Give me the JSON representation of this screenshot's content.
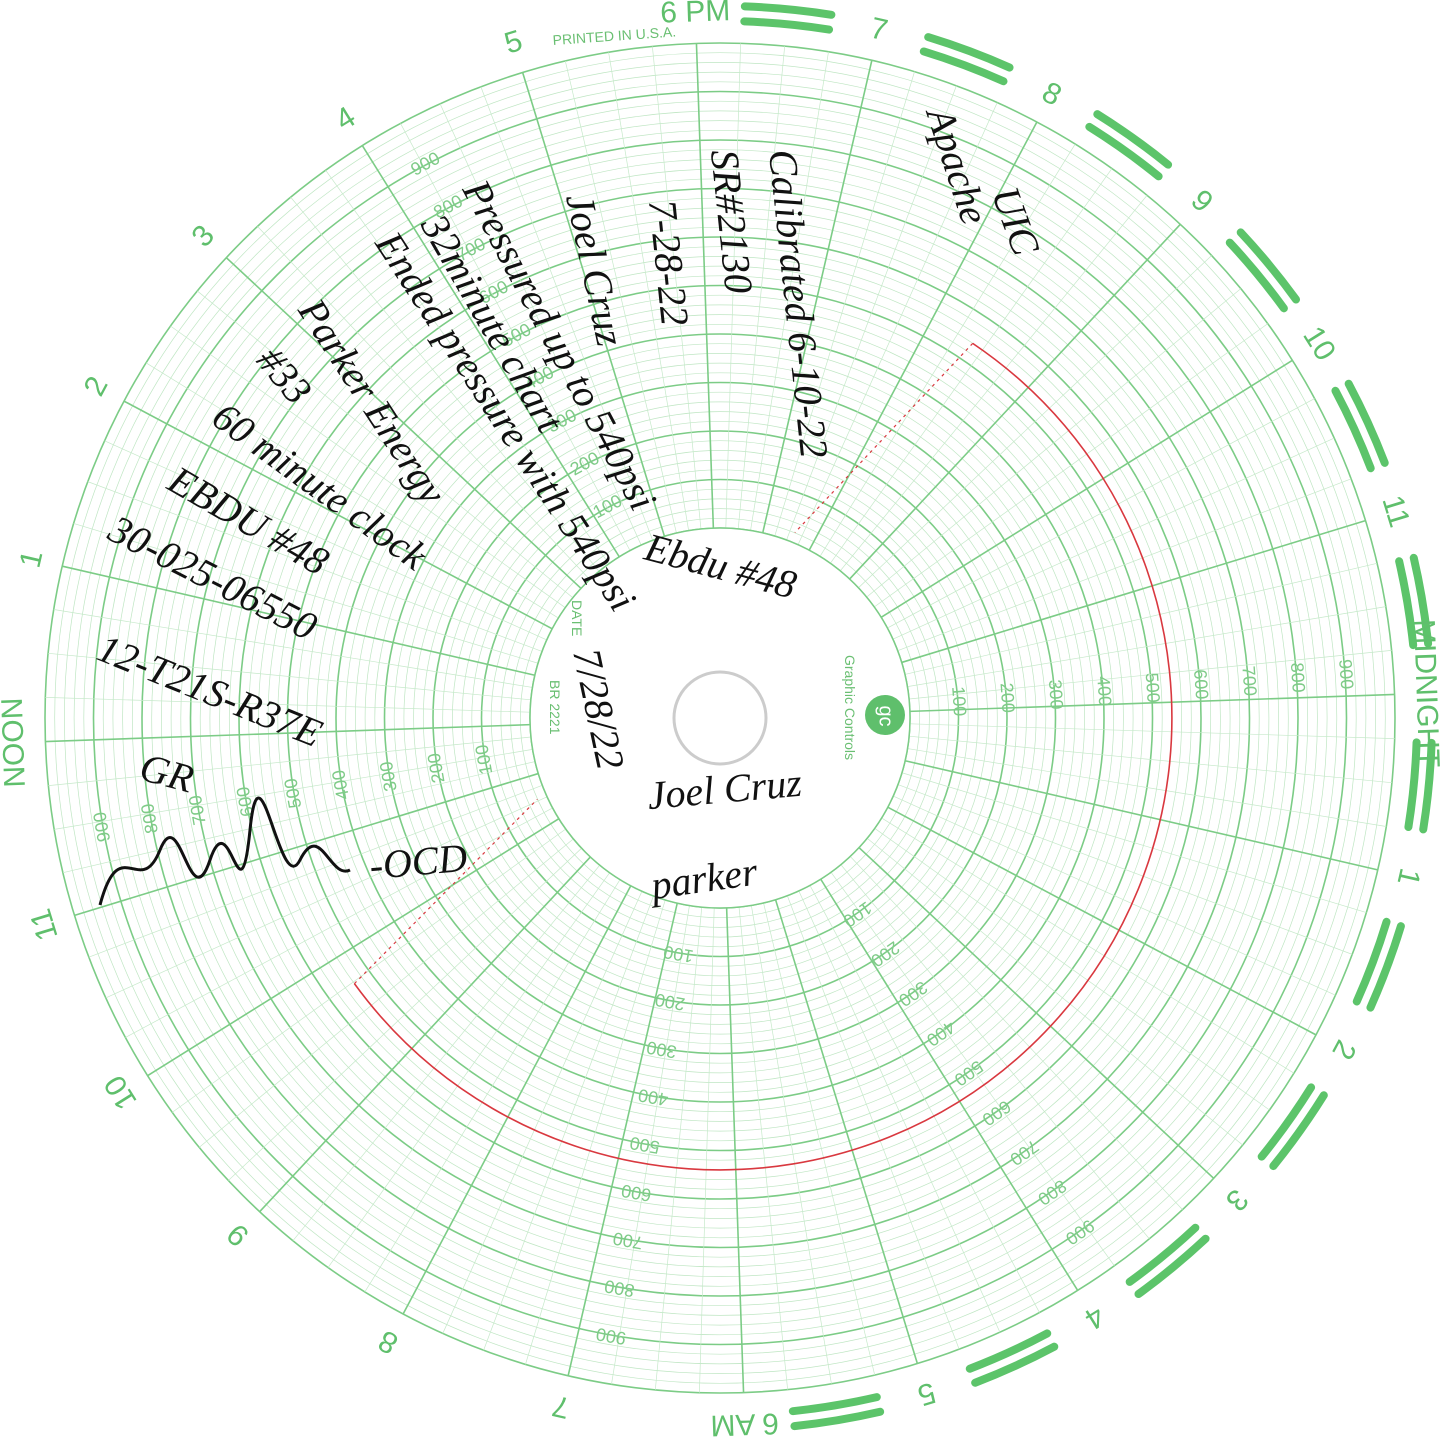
{
  "printed": {
    "hours": [
      "6 PM",
      "7",
      "8",
      "9",
      "10",
      "11",
      "MIDNIGHT",
      "1",
      "2",
      "3",
      "4",
      "5",
      "6 AM",
      "7",
      "8",
      "9",
      "10",
      "11",
      "NOON",
      "1",
      "2",
      "3",
      "4",
      "5"
    ],
    "printed_in": "PRINTED IN U.S.A.",
    "date_label": "DATE",
    "chart_number": "BR 2221",
    "brand": "Graphic Controls",
    "logo": "gc"
  },
  "scale": [
    100,
    200,
    300,
    400,
    500,
    600,
    700,
    800,
    900
  ],
  "trace": {
    "pressure": 540
  },
  "notes": [
    "UIC",
    "Apache",
    "Calibrated 6-10-22",
    "SR#2130",
    "7-28-22",
    "Joel Cruz",
    "Pressured up to 540psi",
    "32minute chart",
    "Ended pressure with 540psi",
    "Parker Energy",
    "#33",
    "60 minute clock",
    "EBDU #48",
    "30-025-06550",
    "12-T21S-R37E",
    "GR",
    "-OCD",
    "Ebdu #48",
    "7/28/22",
    "Joel Cruz",
    "parker"
  ]
}
